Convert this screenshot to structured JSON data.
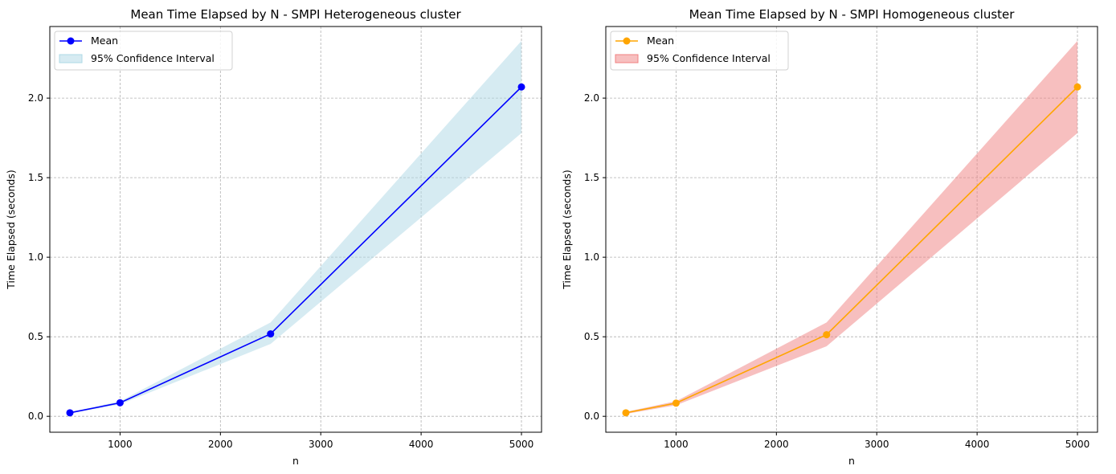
{
  "chart_data": [
    {
      "type": "line",
      "title": "Mean Time Elapsed by N - SMPI Heterogeneous cluster",
      "xlabel": "n",
      "ylabel": "Time Elapsed (seconds)",
      "xlim": [
        300,
        5200
      ],
      "ylim": [
        -0.1,
        2.45
      ],
      "xticks": [
        1000,
        2000,
        3000,
        4000,
        5000
      ],
      "yticks": [
        0.0,
        0.5,
        1.0,
        1.5,
        2.0
      ],
      "xtick_labels": [
        "1000",
        "2000",
        "3000",
        "4000",
        "5000"
      ],
      "ytick_labels": [
        "0.0",
        "0.5",
        "1.0",
        "1.5",
        "2.0"
      ],
      "grid": true,
      "legend_position": "top-left",
      "line_color": "#0000ff",
      "band_color": "#add8e6",
      "x": [
        500,
        1000,
        2500,
        5000
      ],
      "series": [
        {
          "name": "Mean",
          "values": [
            0.022,
            0.085,
            0.518,
            2.07
          ]
        }
      ],
      "confidence_interval": {
        "name": "95% Confidence Interval",
        "lower": [
          0.018,
          0.075,
          0.455,
          1.78
        ],
        "upper": [
          0.026,
          0.095,
          0.59,
          2.36
        ]
      }
    },
    {
      "type": "line",
      "title": "Mean Time Elapsed by N - SMPI Homogeneous cluster",
      "xlabel": "n",
      "ylabel": "Time Elapsed (seconds)",
      "xlim": [
        300,
        5200
      ],
      "ylim": [
        -0.1,
        2.45
      ],
      "xticks": [
        1000,
        2000,
        3000,
        4000,
        5000
      ],
      "yticks": [
        0.0,
        0.5,
        1.0,
        1.5,
        2.0
      ],
      "xtick_labels": [
        "1000",
        "2000",
        "3000",
        "4000",
        "5000"
      ],
      "ytick_labels": [
        "0.0",
        "0.5",
        "1.0",
        "1.5",
        "2.0"
      ],
      "grid": true,
      "legend_position": "top-left",
      "line_color": "#ffa500",
      "band_color": "#f08080",
      "x": [
        500,
        1000,
        2500,
        5000
      ],
      "series": [
        {
          "name": "Mean",
          "values": [
            0.022,
            0.083,
            0.513,
            2.07
          ]
        }
      ],
      "confidence_interval": {
        "name": "95% Confidence Interval",
        "lower": [
          0.015,
          0.07,
          0.44,
          1.78
        ],
        "upper": [
          0.028,
          0.095,
          0.59,
          2.36
        ]
      }
    }
  ]
}
